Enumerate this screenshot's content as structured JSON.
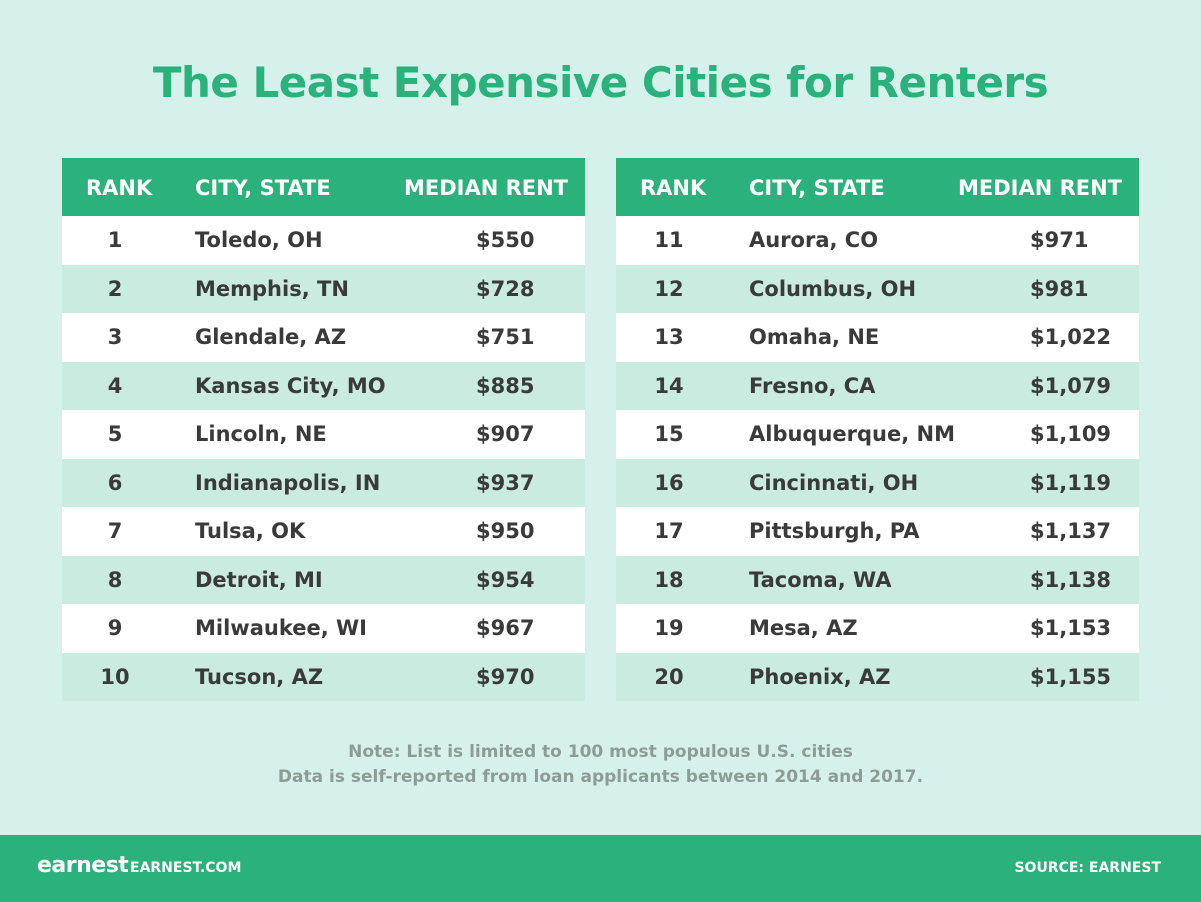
{
  "title": "The Least Expensive Cities for Renters",
  "tables": [
    {
      "header": [
        "RANK",
        "CITY, STATE",
        "MEDIAN RENT"
      ],
      "rows": [
        [
          1,
          "Toledo, OH",
          "$550"
        ],
        [
          2,
          "Memphis, TN",
          "$728"
        ],
        [
          3,
          "Glendale, AZ",
          "$751"
        ],
        [
          4,
          "Kansas City, MO",
          "$885"
        ],
        [
          5,
          "Lincoln, NE",
          "$907"
        ],
        [
          6,
          "Indianapolis, IN",
          "$937"
        ],
        [
          7,
          "Tulsa, OK",
          "$950"
        ],
        [
          8,
          "Detroit, MI",
          "$954"
        ],
        [
          9,
          "Milwaukee, WI",
          "$967"
        ],
        [
          10,
          "Tucson, AZ",
          "$970"
        ]
      ]
    },
    {
      "header": [
        "RANK",
        "CITY, STATE",
        "MEDIAN RENT"
      ],
      "rows": [
        [
          11,
          "Aurora, CO",
          "$971"
        ],
        [
          12,
          "Columbus, OH",
          "$981"
        ],
        [
          13,
          "Omaha, NE",
          "$1,022"
        ],
        [
          14,
          "Fresno, CA",
          "$1,079"
        ],
        [
          15,
          "Albuquerque, NM",
          "$1,109"
        ],
        [
          16,
          "Cincinnati, OH",
          "$1,119"
        ],
        [
          17,
          "Pittsburgh, PA",
          "$1,137"
        ],
        [
          18,
          "Tacoma, WA",
          "$1,138"
        ],
        [
          19,
          "Mesa, AZ",
          "$1,153"
        ],
        [
          20,
          "Phoenix, AZ",
          "$1,155"
        ]
      ]
    }
  ],
  "notes": [
    "Note: List is limited to 100 most populous U.S. cities",
    "Data is self-reported from loan applicants between 2014 and 2017."
  ],
  "footer": {
    "logo": "earnest",
    "site": "EARNEST.COM",
    "source": "SOURCE: EARNEST"
  }
}
